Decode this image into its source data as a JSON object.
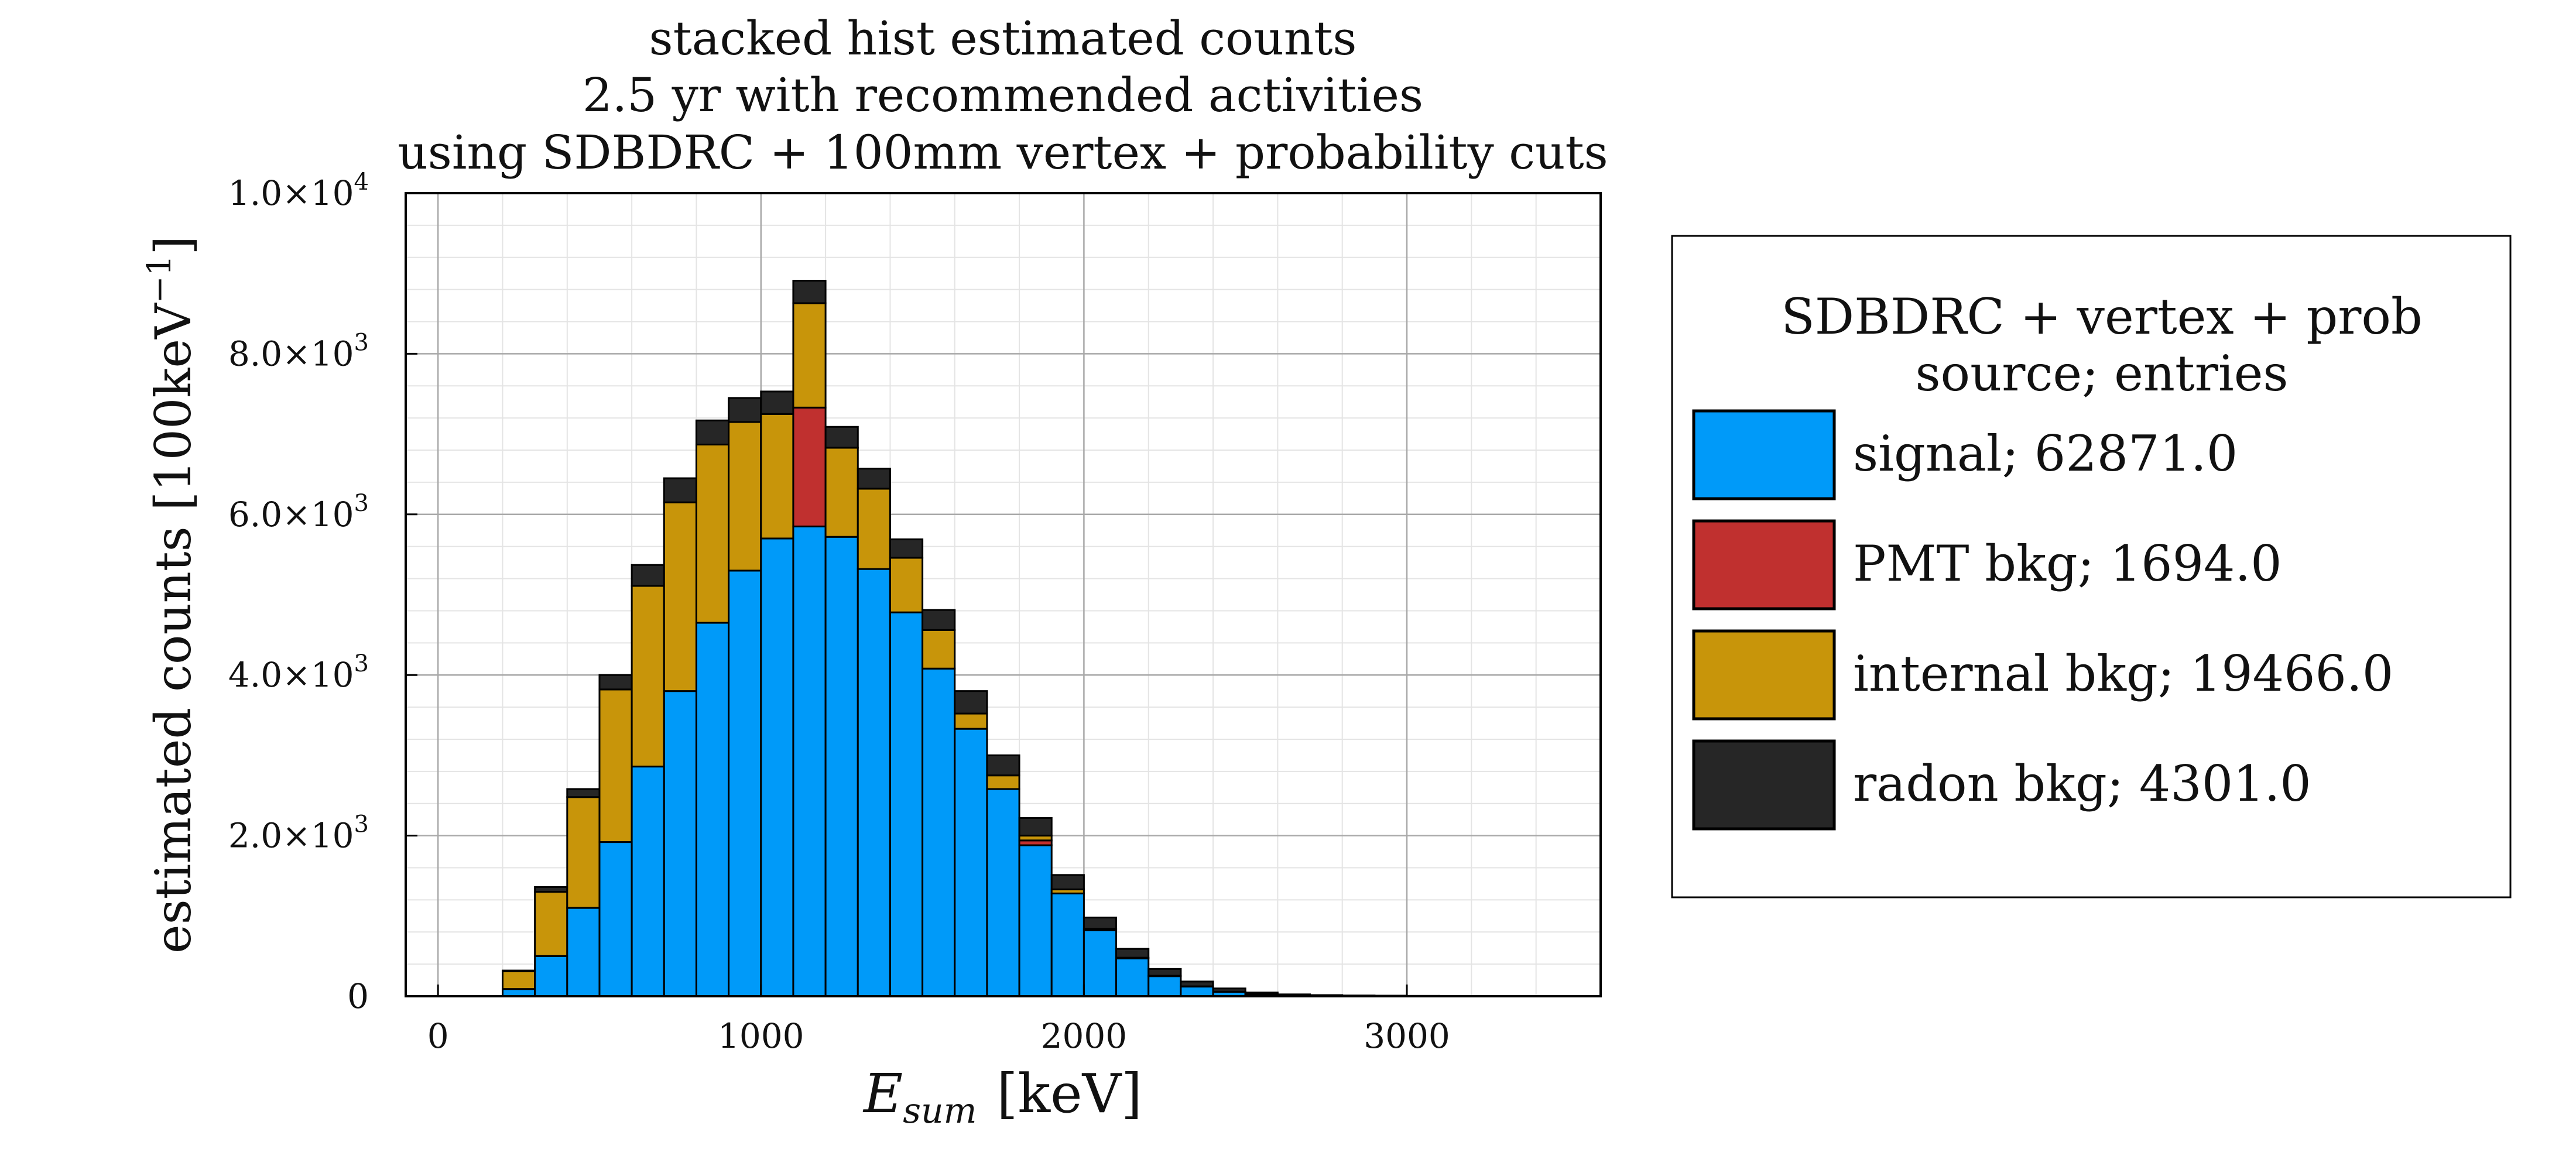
{
  "chart_data": {
    "type": "bar",
    "stacked": true,
    "title_lines": [
      "stacked hist estimated counts",
      "2.5 yr with recommended activities",
      "using SDBDRC + 100mm vertex + probability cuts"
    ],
    "xlabel_main": "E",
    "xlabel_sub": "sum",
    "xlabel_unit": "[keV]",
    "ylabel": "estimated counts [100keV",
    "ylabel_exp": "−1",
    "ylabel_close": "]",
    "xlim": [
      -100,
      3600
    ],
    "ylim": [
      0,
      10000
    ],
    "x_ticks": [
      {
        "value": 0,
        "label": "0"
      },
      {
        "value": 1000,
        "label": "1000"
      },
      {
        "value": 2000,
        "label": "2000"
      },
      {
        "value": 3000,
        "label": "3000"
      }
    ],
    "y_ticks": [
      {
        "value": 0,
        "mant": "0",
        "exp": ""
      },
      {
        "value": 2000,
        "mant": "2.0×10",
        "exp": "3"
      },
      {
        "value": 4000,
        "mant": "4.0×10",
        "exp": "3"
      },
      {
        "value": 6000,
        "mant": "6.0×10",
        "exp": "3"
      },
      {
        "value": 8000,
        "mant": "8.0×10",
        "exp": "3"
      },
      {
        "value": 10000,
        "mant": "1.0×10",
        "exp": "4"
      }
    ],
    "grid": true,
    "bin_width": 100,
    "bin_edges_start": 200,
    "legend": {
      "title_lines": [
        "SDBDRC + vertex + prob",
        "source; entries"
      ],
      "placement": "right-outside"
    },
    "series": [
      {
        "name": "signal; 62871.0",
        "color": "#009af9",
        "values": [
          90,
          500,
          1100,
          1920,
          2860,
          3800,
          4650,
          5300,
          5700,
          5850,
          5720,
          5320,
          4780,
          4080,
          3330,
          2580,
          1880,
          1280,
          820,
          470,
          250,
          120,
          55,
          25,
          12,
          6,
          3,
          2,
          1,
          1,
          1,
          1,
          0,
          0
        ]
      },
      {
        "name": "PMT bkg; 1694.0",
        "color": "#c0302f",
        "values": [
          0,
          0,
          0,
          0,
          0,
          0,
          0,
          0,
          0,
          1480,
          0,
          0,
          0,
          0,
          0,
          0,
          60,
          0,
          0,
          0,
          0,
          0,
          0,
          0,
          0,
          0,
          0,
          0,
          0,
          0,
          0,
          0,
          0,
          0
        ]
      },
      {
        "name": "internal bkg; 19466.0",
        "color": "#c8950a",
        "values": [
          220,
          800,
          1380,
          1900,
          2250,
          2350,
          2220,
          1850,
          1550,
          1300,
          1110,
          1000,
          680,
          480,
          190,
          170,
          60,
          50,
          20,
          10,
          5,
          3,
          2,
          1,
          1,
          0,
          0,
          0,
          0,
          0,
          0,
          0,
          0,
          0
        ]
      },
      {
        "name": "radon bkg; 4301.0",
        "color": "#262626",
        "values": [
          10,
          60,
          100,
          180,
          260,
          300,
          300,
          300,
          280,
          280,
          260,
          250,
          230,
          250,
          280,
          250,
          220,
          180,
          140,
          110,
          85,
          60,
          40,
          20,
          10,
          8,
          6,
          5,
          4,
          3,
          2,
          2,
          1,
          1
        ]
      }
    ]
  }
}
